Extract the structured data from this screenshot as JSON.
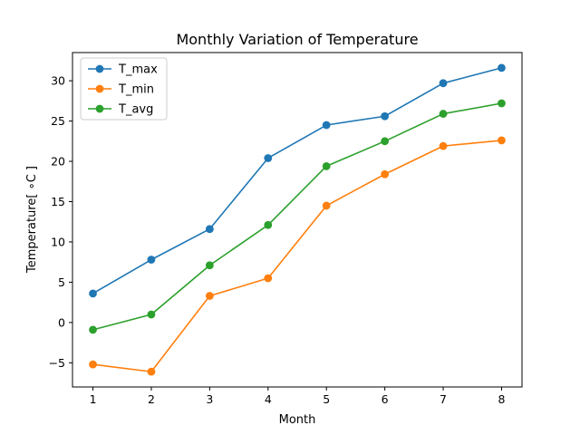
{
  "chart_data": {
    "type": "line",
    "title": "Monthly Variation of Temperature",
    "xlabel": "Month",
    "ylabel": "Temperature[ ∘C ]",
    "x": [
      1,
      2,
      3,
      4,
      5,
      6,
      7,
      8
    ],
    "xlim": [
      0.65,
      8.35
    ],
    "ylim": [
      -8,
      33.5
    ],
    "xticks": [
      "1",
      "2",
      "3",
      "4",
      "5",
      "6",
      "7",
      "8"
    ],
    "yticks": [
      "−5",
      "0",
      "5",
      "10",
      "15",
      "20",
      "25",
      "30"
    ],
    "ytick_values": [
      -5,
      0,
      5,
      10,
      15,
      20,
      25,
      30
    ],
    "grid": false,
    "legend_position": "top-left",
    "series": [
      {
        "name": "T_max",
        "color": "#1f77b4",
        "values": [
          3.6,
          7.8,
          11.6,
          20.4,
          24.5,
          25.6,
          29.7,
          31.6
        ]
      },
      {
        "name": "T_min",
        "color": "#ff7f0e",
        "values": [
          -5.2,
          -6.1,
          3.3,
          5.5,
          14.5,
          18.4,
          21.9,
          22.6
        ]
      },
      {
        "name": "T_avg",
        "color": "#2ca02c",
        "values": [
          -0.9,
          1.0,
          7.1,
          12.1,
          19.4,
          22.5,
          25.9,
          27.2
        ]
      }
    ]
  }
}
